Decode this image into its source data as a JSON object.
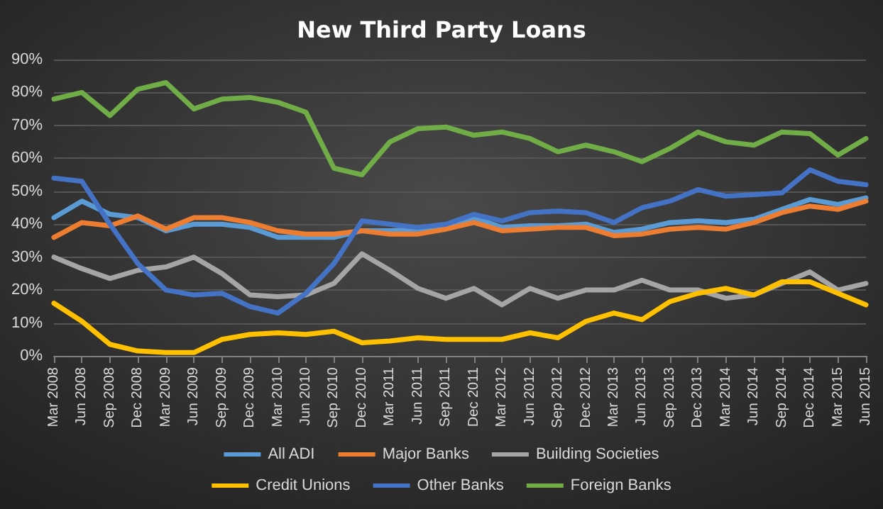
{
  "chart_data": {
    "type": "line",
    "title": "New Third Party Loans",
    "categories": [
      "Mar 2008",
      "Jun 2008",
      "Sep 2008",
      "Dec 2008",
      "Mar 2009",
      "Jun 2009",
      "Sep 2009",
      "Dec 2009",
      "Mar 2010",
      "Jun 2010",
      "Sep 2010",
      "Dec 2010",
      "Mar 2011",
      "Jun 2011",
      "Sep 2011",
      "Dec 2011",
      "Mar 2012",
      "Jun 2012",
      "Sep 2012",
      "Dec 2012",
      "Mar 2013",
      "Jun 2013",
      "Sep 2013",
      "Dec 2013",
      "Mar 2014",
      "Jun 2014",
      "Sep 2014",
      "Dec 2014",
      "Mar 2015",
      "Jun 2015"
    ],
    "series": [
      {
        "name": "All ADI",
        "color": "#5b9bd5",
        "values": [
          42,
          47,
          43,
          42,
          38,
          40,
          40,
          39,
          36,
          36,
          36,
          38,
          38,
          38.5,
          39.5,
          42,
          39,
          39.5,
          39.5,
          40,
          37.5,
          38.5,
          40.5,
          41,
          40.5,
          41.5,
          44.5,
          47.5,
          46,
          48
        ]
      },
      {
        "name": "Major Banks",
        "color": "#ed7d31",
        "values": [
          36,
          40.5,
          39.5,
          42.5,
          38.5,
          42,
          42,
          40.5,
          38,
          37,
          37,
          38,
          37,
          37,
          38.5,
          40.5,
          38,
          38.5,
          39,
          39,
          36.5,
          37,
          38.5,
          39,
          38.5,
          40.5,
          43.5,
          45.5,
          44.5,
          47
        ]
      },
      {
        "name": "Building Societies",
        "color": "#a5a5a5",
        "values": [
          30,
          26.5,
          23.5,
          26,
          27,
          30,
          25,
          18.5,
          18,
          18.5,
          22,
          31,
          26,
          20.5,
          17.5,
          20.5,
          15.5,
          20.5,
          17.5,
          20,
          20,
          23,
          20,
          20,
          17.5,
          18.5,
          22,
          25.5,
          20,
          22
        ]
      },
      {
        "name": "Credit Unions",
        "color": "#ffc000",
        "values": [
          16,
          10.5,
          3.5,
          1.5,
          1,
          1,
          5,
          6.5,
          7,
          6.5,
          7.5,
          4,
          4.5,
          5.5,
          5,
          5,
          5,
          7,
          5.5,
          10.5,
          13,
          11,
          16.5,
          19,
          20.5,
          18.5,
          22.5,
          22.5,
          19,
          15.5
        ]
      },
      {
        "name": "Other Banks",
        "color": "#4472c4",
        "values": [
          54,
          53,
          40,
          28,
          20,
          18.5,
          19,
          15,
          13,
          19,
          28,
          41,
          40,
          39,
          40,
          43,
          41,
          43.5,
          44,
          43.5,
          40.5,
          45,
          47,
          50.5,
          48.5,
          49,
          49.5,
          56.5,
          53,
          52
        ]
      },
      {
        "name": "Foreign Banks",
        "color": "#70ad47",
        "values": [
          78,
          80,
          73,
          81,
          83,
          75,
          78,
          78.5,
          77,
          74,
          57,
          55,
          65,
          69,
          69.5,
          67,
          68,
          66,
          62,
          64,
          62,
          59,
          63,
          68,
          65,
          64,
          68,
          67.5,
          61,
          66
        ]
      }
    ],
    "ylim": [
      0,
      90
    ],
    "yticks": [
      {
        "value": 0,
        "label": "0%"
      },
      {
        "value": 10,
        "label": "10%"
      },
      {
        "value": 20,
        "label": "20%"
      },
      {
        "value": 30,
        "label": "30%"
      },
      {
        "value": 40,
        "label": "40%"
      },
      {
        "value": 50,
        "label": "50%"
      },
      {
        "value": 60,
        "label": "60%"
      },
      {
        "value": 70,
        "label": "70%"
      },
      {
        "value": 80,
        "label": "80%"
      },
      {
        "value": 90,
        "label": "90%"
      }
    ],
    "grid": "y",
    "legend": "bottom",
    "marker": "none",
    "line_style": "solid"
  }
}
